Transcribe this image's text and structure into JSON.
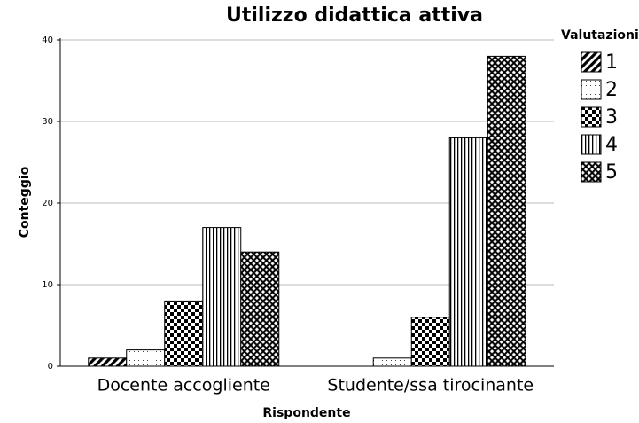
{
  "chart_data": {
    "type": "bar",
    "title": "Utilizzo didattica attiva",
    "xlabel": "Rispondente",
    "ylabel": "Conteggio",
    "legend_title": "Valutazioni",
    "categories": [
      "Docente accogliente",
      "Studente/ssa tirocinante"
    ],
    "series": [
      {
        "name": "1",
        "color": "#000000",
        "pattern": "diagonal",
        "values": [
          1,
          0
        ]
      },
      {
        "name": "2",
        "color": "#000000",
        "pattern": "dots",
        "values": [
          2,
          1
        ]
      },
      {
        "name": "3",
        "color": "#000000",
        "pattern": "checker",
        "values": [
          8,
          6
        ]
      },
      {
        "name": "4",
        "color": "#000000",
        "pattern": "vertical",
        "values": [
          17,
          28
        ]
      },
      {
        "name": "5",
        "color": "#000000",
        "pattern": "crosshatch",
        "values": [
          14,
          38
        ]
      }
    ],
    "ylim": [
      0,
      40
    ],
    "yticks": [
      0,
      10,
      20,
      30,
      40
    ],
    "grid": true,
    "legend": "right"
  }
}
